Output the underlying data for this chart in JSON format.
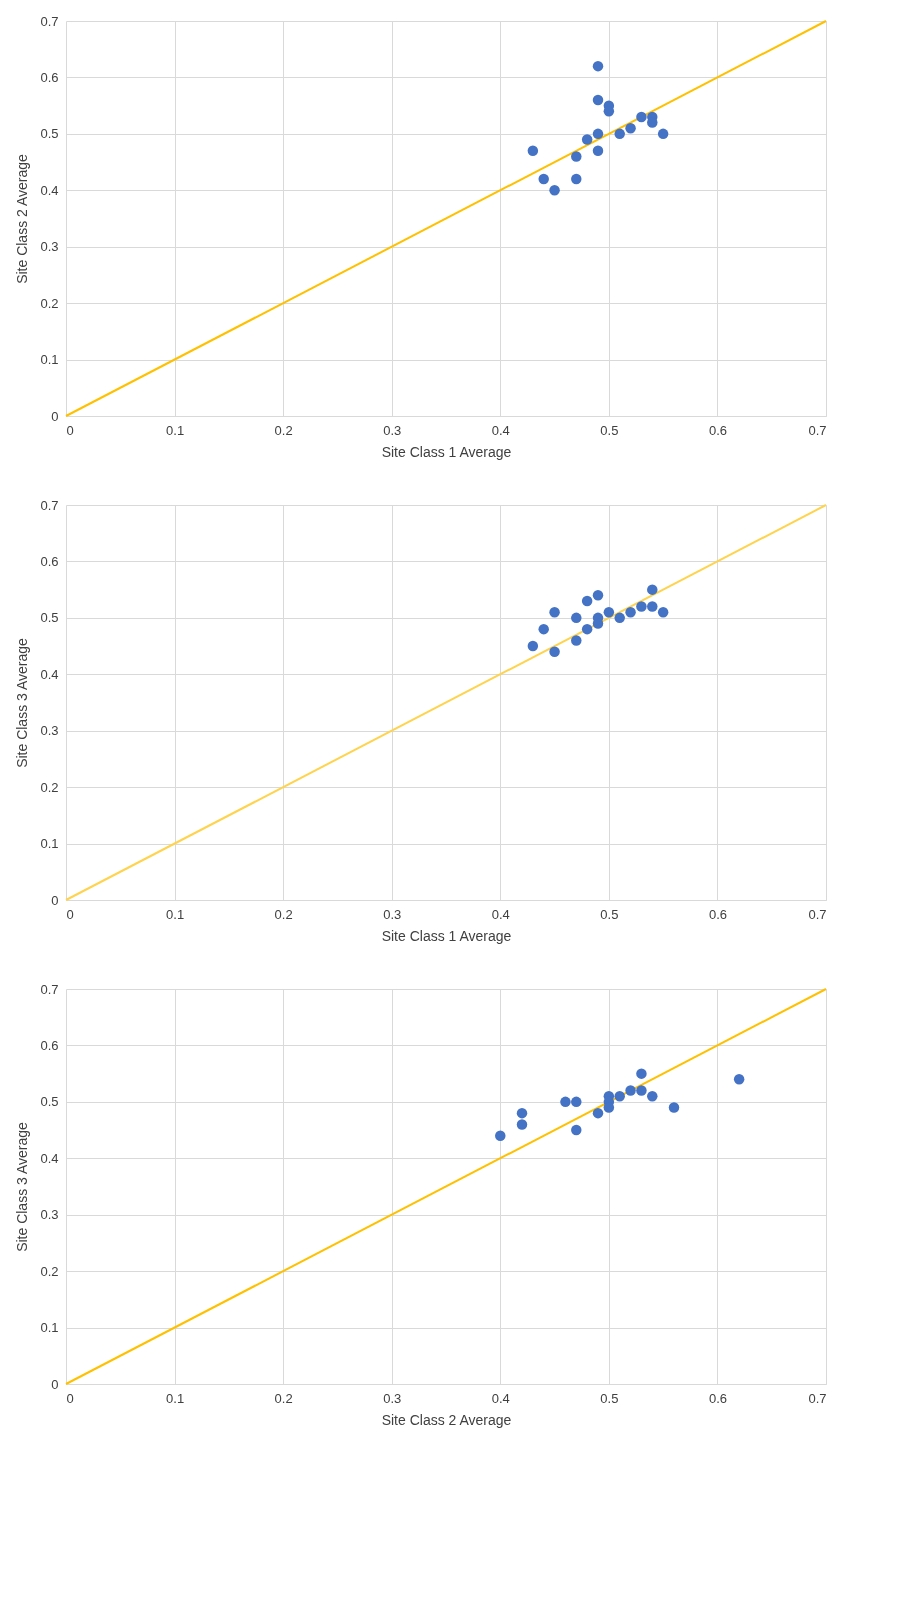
{
  "chart_data": [
    {
      "type": "scatter",
      "xlabel": "Site Class 1 Average",
      "ylabel": "Site Class 2 Average",
      "xlim": [
        0,
        0.7
      ],
      "ylim": [
        0,
        0.7
      ],
      "xticks": [
        0,
        0.1,
        0.2,
        0.3,
        0.4,
        0.5,
        0.6,
        0.7
      ],
      "yticks": [
        0,
        0.1,
        0.2,
        0.3,
        0.4,
        0.5,
        0.6,
        0.7
      ],
      "grid": true,
      "series": [
        {
          "type": "scatter",
          "marker": "circle",
          "color": "#4472c4",
          "x": [
            0.43,
            0.44,
            0.45,
            0.47,
            0.47,
            0.48,
            0.49,
            0.49,
            0.49,
            0.49,
            0.5,
            0.5,
            0.51,
            0.52,
            0.53,
            0.54,
            0.54,
            0.55
          ],
          "values": [
            0.47,
            0.42,
            0.4,
            0.46,
            0.42,
            0.49,
            0.62,
            0.56,
            0.5,
            0.47,
            0.55,
            0.54,
            0.5,
            0.51,
            0.53,
            0.53,
            0.52,
            0.5
          ]
        },
        {
          "type": "line",
          "color": "#ffc000",
          "x": [
            0,
            0.7
          ],
          "values": [
            0,
            0.7
          ]
        }
      ]
    },
    {
      "type": "scatter",
      "xlabel": "Site Class 1 Average",
      "ylabel": "Site Class 3 Average",
      "xlim": [
        0,
        0.7
      ],
      "ylim": [
        0,
        0.7
      ],
      "xticks": [
        0,
        0.1,
        0.2,
        0.3,
        0.4,
        0.5,
        0.6,
        0.7
      ],
      "yticks": [
        0,
        0.1,
        0.2,
        0.3,
        0.4,
        0.5,
        0.6,
        0.7
      ],
      "grid": true,
      "series": [
        {
          "type": "scatter",
          "marker": "circle",
          "color": "#4472c4",
          "x": [
            0.43,
            0.44,
            0.45,
            0.45,
            0.47,
            0.47,
            0.48,
            0.48,
            0.49,
            0.49,
            0.49,
            0.5,
            0.51,
            0.52,
            0.53,
            0.54,
            0.54,
            0.55
          ],
          "values": [
            0.45,
            0.48,
            0.51,
            0.44,
            0.5,
            0.46,
            0.53,
            0.48,
            0.54,
            0.5,
            0.49,
            0.51,
            0.5,
            0.51,
            0.52,
            0.55,
            0.52,
            0.51
          ]
        },
        {
          "type": "line",
          "color": "#ffd34d",
          "x": [
            0,
            0.7
          ],
          "values": [
            0,
            0.7
          ]
        }
      ]
    },
    {
      "type": "scatter",
      "xlabel": "Site Class 2 Average",
      "ylabel": "Site Class 3 Average",
      "xlim": [
        0,
        0.7
      ],
      "ylim": [
        0,
        0.7
      ],
      "xticks": [
        0,
        0.1,
        0.2,
        0.3,
        0.4,
        0.5,
        0.6,
        0.7
      ],
      "yticks": [
        0,
        0.1,
        0.2,
        0.3,
        0.4,
        0.5,
        0.6,
        0.7
      ],
      "grid": true,
      "series": [
        {
          "type": "scatter",
          "marker": "circle",
          "color": "#4472c4",
          "x": [
            0.4,
            0.42,
            0.42,
            0.46,
            0.47,
            0.47,
            0.49,
            0.5,
            0.5,
            0.5,
            0.51,
            0.52,
            0.53,
            0.53,
            0.54,
            0.56,
            0.62
          ],
          "values": [
            0.44,
            0.48,
            0.46,
            0.5,
            0.5,
            0.45,
            0.48,
            0.51,
            0.5,
            0.49,
            0.51,
            0.52,
            0.55,
            0.52,
            0.51,
            0.49,
            0.54
          ]
        },
        {
          "type": "line",
          "color": "#ffc000",
          "x": [
            0,
            0.7
          ],
          "values": [
            0,
            0.7
          ]
        }
      ]
    }
  ]
}
